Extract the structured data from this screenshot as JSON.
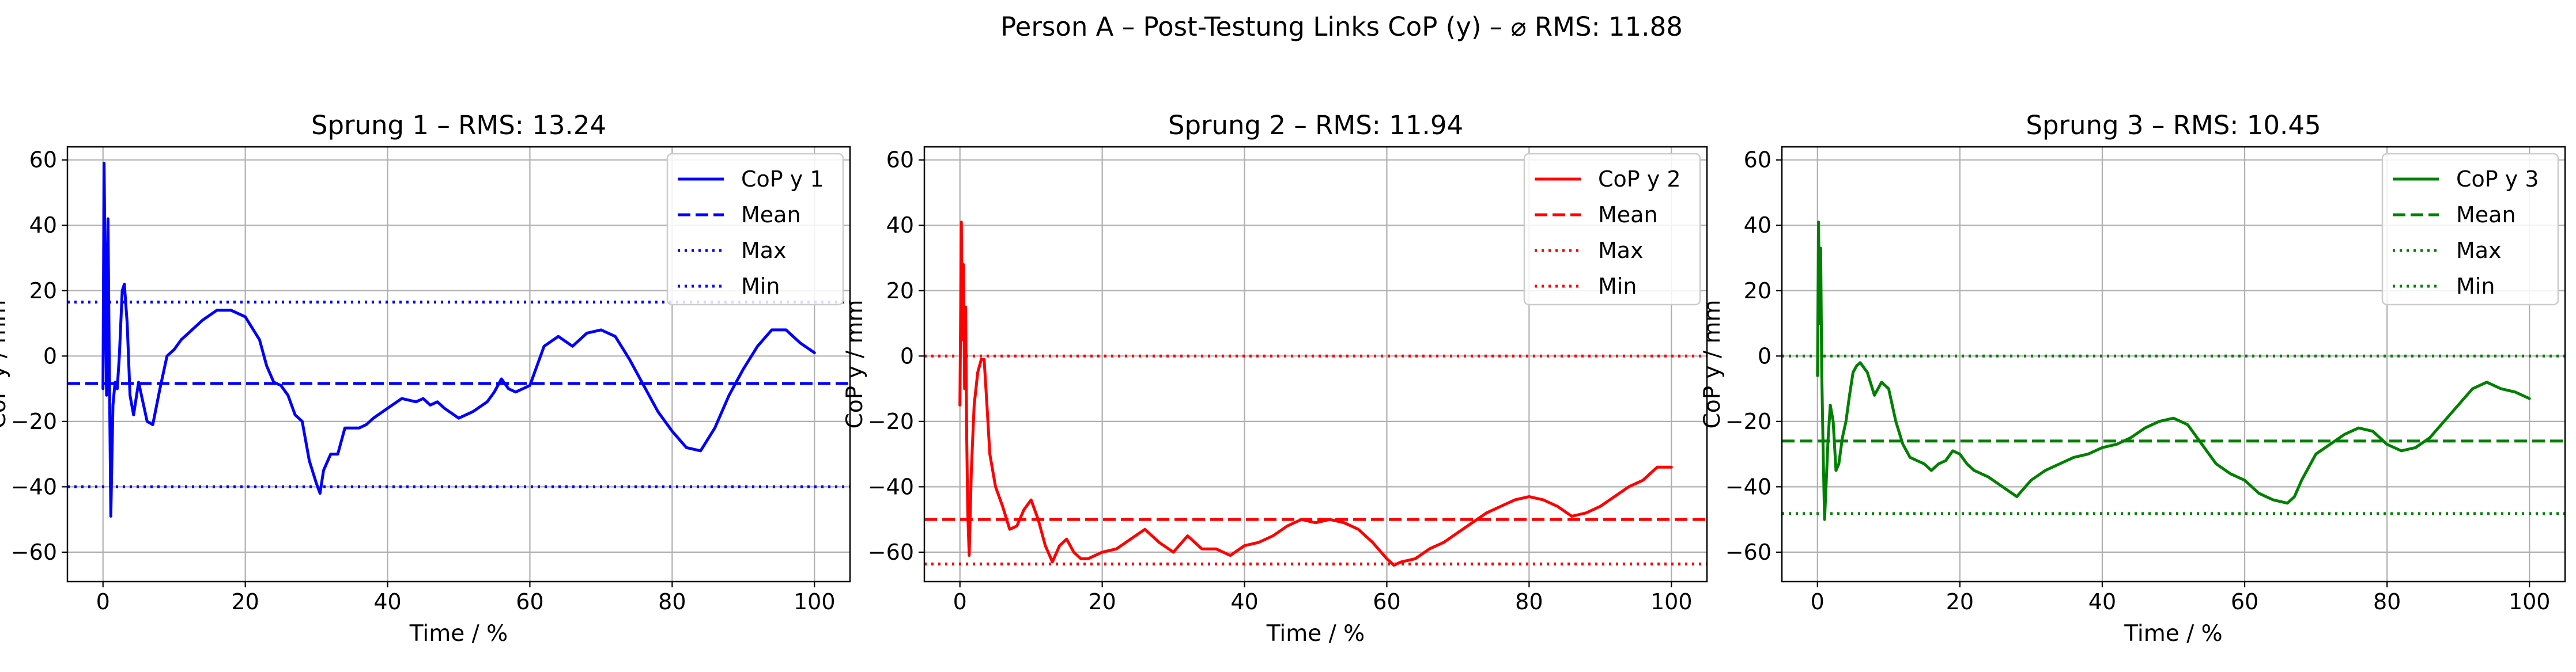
{
  "figure": {
    "suptitle": "Person A – Post-Testung Links CoP (y) – ⌀ RMS: 11.88"
  },
  "chart_data": [
    {
      "type": "line",
      "title": "Sprung 1 – RMS: 13.24",
      "xlabel": "Time / %",
      "ylabel": "CoP y / mm",
      "xlim": [
        -5,
        105
      ],
      "ylim": [
        -69,
        64
      ],
      "xticks": [
        0,
        20,
        40,
        60,
        80,
        100
      ],
      "yticks": [
        -60,
        -40,
        -20,
        0,
        20,
        40,
        60
      ],
      "grid": true,
      "legend_position": "upper right",
      "color": "#0000ff",
      "series": [
        {
          "name": "CoP y 1",
          "style": "solid",
          "x": [
            0,
            0.15,
            0.3,
            0.5,
            0.7,
            0.9,
            1.1,
            1.4,
            1.7,
            2.0,
            2.3,
            2.7,
            3.0,
            3.4,
            3.8,
            4.3,
            5.0,
            5.6,
            6.2,
            7,
            8,
            9,
            10,
            11,
            12,
            14,
            16,
            18,
            20,
            22,
            23,
            24,
            25,
            26,
            27,
            28,
            29,
            30,
            30.5,
            31,
            32,
            33,
            34,
            35,
            36,
            37,
            38,
            40,
            42,
            44,
            45,
            46,
            47,
            48,
            50,
            52,
            54,
            55,
            56,
            57,
            58,
            59,
            60,
            62,
            64,
            66,
            68,
            70,
            72,
            74,
            76,
            78,
            80,
            82,
            84,
            86,
            88,
            90,
            92,
            94,
            96,
            98,
            100
          ],
          "values": [
            -10,
            59,
            28,
            -12,
            42,
            -5,
            -49,
            -15,
            -8,
            -10,
            0,
            20,
            22,
            10,
            -12,
            -18,
            -8,
            -14,
            -20,
            -21,
            -10,
            0,
            2,
            5,
            7,
            11,
            14,
            14,
            12,
            5,
            -3,
            -8,
            -9,
            -12,
            -18,
            -20,
            -32,
            -39,
            -42,
            -35,
            -30,
            -30,
            -22,
            -22,
            -22,
            -21,
            -19,
            -16,
            -13,
            -14,
            -13,
            -15,
            -14,
            -16,
            -19,
            -17,
            -14,
            -11,
            -7,
            -10,
            -11,
            -10,
            -9,
            3,
            6,
            3,
            7,
            8,
            6,
            -1,
            -9,
            -17,
            -23,
            -28,
            -29,
            -22,
            -12,
            -4,
            3,
            8,
            8,
            4,
            1
          ]
        },
        {
          "name": "Mean",
          "style": "dashed",
          "value": -8.4
        },
        {
          "name": "Max",
          "style": "dotted",
          "value": 16.5
        },
        {
          "name": "Min",
          "style": "dotted",
          "value": -40
        }
      ]
    },
    {
      "type": "line",
      "title": "Sprung 2 – RMS: 11.94",
      "xlabel": "Time / %",
      "ylabel": "CoP y / mm",
      "xlim": [
        -5,
        105
      ],
      "ylim": [
        -69,
        64
      ],
      "xticks": [
        0,
        20,
        40,
        60,
        80,
        100
      ],
      "yticks": [
        -60,
        -40,
        -20,
        0,
        20,
        40,
        60
      ],
      "grid": true,
      "legend_position": "upper right",
      "color": "#ff0000",
      "series": [
        {
          "name": "CoP y 2",
          "style": "solid",
          "x": [
            0,
            0.2,
            0.35,
            0.5,
            0.65,
            0.8,
            0.95,
            1.1,
            1.3,
            1.6,
            2.0,
            2.5,
            3.0,
            3.4,
            3.8,
            4.2,
            5,
            6,
            7,
            8,
            9,
            10,
            11,
            12,
            13,
            14,
            15,
            16,
            17,
            18,
            20,
            22,
            24,
            26,
            28,
            30,
            32,
            34,
            36,
            38,
            40,
            42,
            44,
            46,
            48,
            50,
            52,
            54,
            56,
            58,
            60,
            61,
            62,
            64,
            66,
            68,
            70,
            72,
            74,
            76,
            78,
            80,
            82,
            84,
            86,
            88,
            90,
            92,
            94,
            96,
            98,
            100
          ],
          "values": [
            -15,
            41,
            5,
            28,
            -10,
            15,
            -25,
            -48,
            -61,
            -35,
            -15,
            -5,
            -1,
            -1,
            -15,
            -30,
            -40,
            -46,
            -53,
            -52,
            -47,
            -44,
            -50,
            -58,
            -63,
            -58,
            -56,
            -60,
            -62,
            -62,
            -60,
            -59,
            -56,
            -53,
            -57,
            -60,
            -55,
            -59,
            -59,
            -61,
            -58,
            -57,
            -55,
            -52,
            -50,
            -51,
            -50,
            -51,
            -53,
            -57,
            -62,
            -64,
            -63,
            -62,
            -59,
            -57,
            -54,
            -51,
            -48,
            -46,
            -44,
            -43,
            -44,
            -46,
            -49,
            -48,
            -46,
            -43,
            -40,
            -38,
            -34,
            -34
          ]
        },
        {
          "name": "Mean",
          "style": "dashed",
          "value": -50
        },
        {
          "name": "Max",
          "style": "dotted",
          "value": 0
        },
        {
          "name": "Min",
          "style": "dotted",
          "value": -63.6
        }
      ]
    },
    {
      "type": "line",
      "title": "Sprung 3 – RMS: 10.45",
      "xlabel": "Time / %",
      "ylabel": "CoP y / mm",
      "xlim": [
        -5,
        105
      ],
      "ylim": [
        -69,
        64
      ],
      "xticks": [
        0,
        20,
        40,
        60,
        80,
        100
      ],
      "yticks": [
        -60,
        -40,
        -20,
        0,
        20,
        40,
        60
      ],
      "grid": true,
      "legend_position": "upper right",
      "color": "#008000",
      "series": [
        {
          "name": "CoP y 3",
          "style": "solid",
          "x": [
            0,
            0.15,
            0.3,
            0.45,
            0.6,
            0.8,
            1.0,
            1.2,
            1.5,
            1.8,
            2.2,
            2.6,
            3.0,
            3.5,
            4.0,
            4.5,
            5,
            5.5,
            6,
            7,
            8,
            9,
            10,
            11,
            12,
            13,
            14,
            15,
            16,
            17,
            18,
            19,
            20,
            21,
            22,
            24,
            26,
            28,
            30,
            32,
            34,
            36,
            38,
            40,
            42,
            44,
            46,
            48,
            50,
            52,
            54,
            56,
            58,
            60,
            62,
            64,
            66,
            67,
            68,
            70,
            72,
            74,
            76,
            78,
            80,
            82,
            84,
            86,
            88,
            90,
            92,
            94,
            96,
            98,
            100
          ],
          "values": [
            -6,
            41,
            10,
            33,
            -5,
            -30,
            -50,
            -40,
            -25,
            -15,
            -20,
            -35,
            -33,
            -25,
            -20,
            -12,
            -5,
            -3,
            -2,
            -5,
            -12,
            -8,
            -10,
            -20,
            -27,
            -31,
            -32,
            -33,
            -35,
            -33,
            -32,
            -29,
            -30,
            -33,
            -35,
            -37,
            -40,
            -43,
            -38,
            -35,
            -33,
            -31,
            -30,
            -28,
            -27,
            -25,
            -22,
            -20,
            -19,
            -21,
            -27,
            -33,
            -36,
            -38,
            -42,
            -44,
            -45,
            -43,
            -38,
            -30,
            -27,
            -24,
            -22,
            -23,
            -27,
            -29,
            -28,
            -25,
            -20,
            -15,
            -10,
            -8,
            -10,
            -11,
            -13
          ]
        },
        {
          "name": "Mean",
          "style": "dashed",
          "value": -26
        },
        {
          "name": "Max",
          "style": "dotted",
          "value": 0
        },
        {
          "name": "Min",
          "style": "dotted",
          "value": -48.2
        }
      ]
    }
  ]
}
